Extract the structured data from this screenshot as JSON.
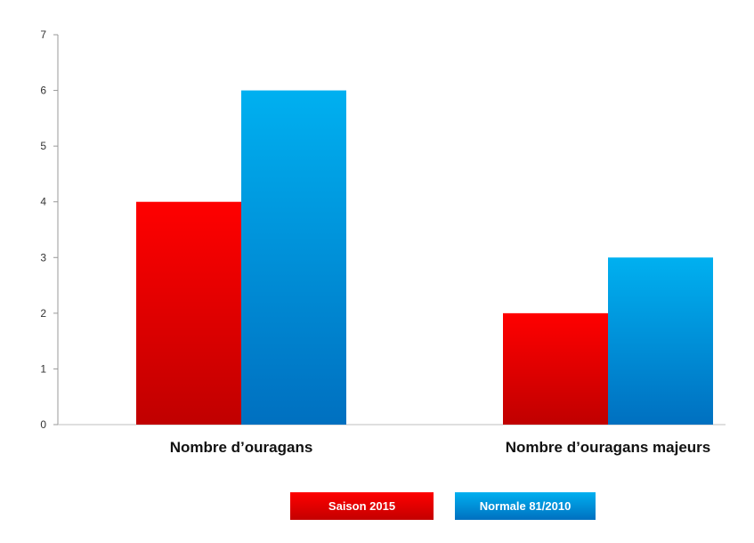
{
  "chart_data": {
    "type": "bar",
    "categories": [
      "Nombre d’ouragans",
      "Nombre d’ouragans majeurs"
    ],
    "series": [
      {
        "name": "Saison 2015",
        "values": [
          4,
          2
        ],
        "color_top": "#ff0000",
        "color_bottom": "#c00000"
      },
      {
        "name": "Normale 81/2010",
        "values": [
          6,
          3
        ],
        "color_top": "#00b0f0",
        "color_bottom": "#0070c0"
      }
    ],
    "ylim": [
      0,
      7
    ],
    "yticks": [
      0,
      1,
      2,
      3,
      4,
      5,
      6,
      7
    ],
    "grid": false,
    "legend_position": "bottom"
  }
}
